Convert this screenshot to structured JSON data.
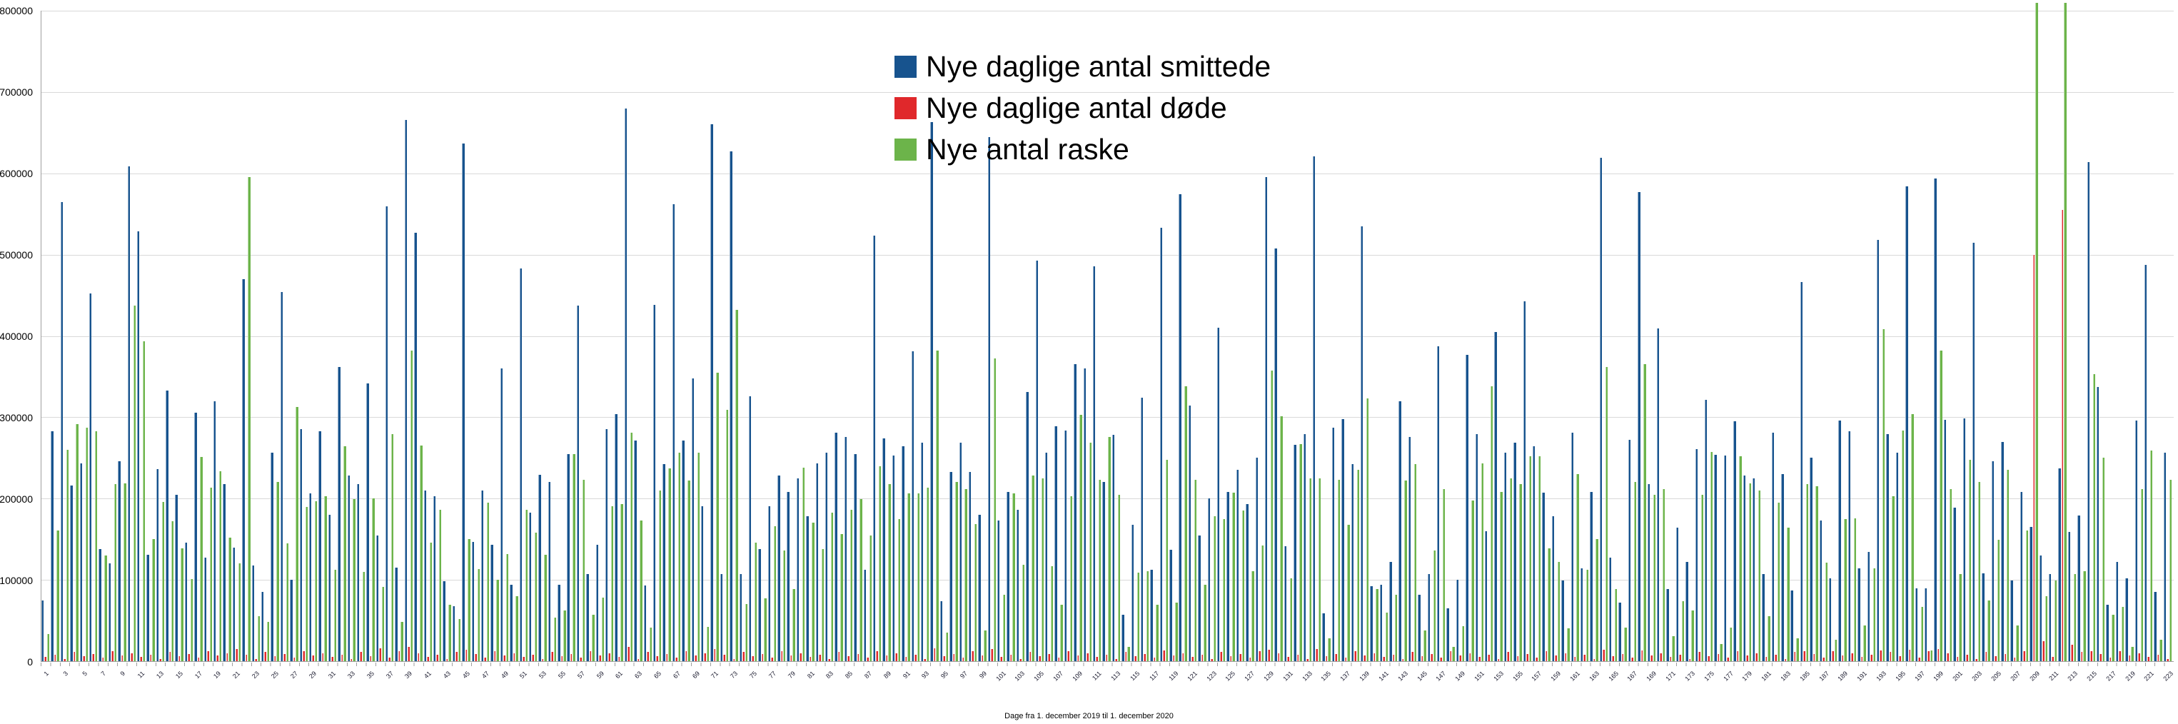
{
  "legend": {
    "items": [
      {
        "label": "Nye daglige antal smittede",
        "color": "#17538E"
      },
      {
        "label": "Nye daglige antal døde",
        "color": "#E0282B"
      },
      {
        "label": "Nye antal raske",
        "color": "#6CB44A"
      }
    ]
  },
  "axes": {
    "x_axis_title": "Dage fra 1. december 2019 til 1. december 2020",
    "y_ticks": [
      "0",
      "100000",
      "200000",
      "300000",
      "400000",
      "500000",
      "600000",
      "700000",
      "800000"
    ],
    "x_first": 1,
    "x_last": 223,
    "x_label_step": 2
  },
  "chart_data": {
    "type": "bar",
    "title": "",
    "xlabel": "Dage fra 1. december 2019 til 1. december 2020",
    "ylabel": "",
    "ylim": [
      0,
      800000
    ],
    "ytick_interval": 100000,
    "grid": true,
    "legend_position": "top-center",
    "days": 223,
    "x_tick_labels": "odd numbers 1 to 223, rotated 45 degrees",
    "series": [
      {
        "name": "Nye daglige antal smittede",
        "color": "#17538E",
        "values": [
          75000,
          283000,
          565000,
          216000,
          243000,
          452000,
          138000,
          120000,
          246000,
          609000,
          529000,
          131000,
          236000,
          333000,
          205000,
          146000,
          306000,
          127000,
          320000,
          218000,
          140000,
          470000,
          118000,
          85000,
          256000,
          454000,
          100000,
          285000,
          206000,
          283000,
          180000,
          362000,
          228000,
          218000,
          342000,
          155000,
          559000,
          115000,
          666000,
          527000,
          210000,
          203000,
          98000,
          68000,
          637000,
          147000,
          210000,
          143000,
          360000,
          94000,
          483000,
          183000,
          229000,
          220000,
          94000,
          255000,
          437000,
          107000,
          143000,
          285000,
          304000,
          680000,
          271000,
          93000,
          438000,
          242000,
          562000,
          271000,
          348000,
          191000,
          660000,
          107000,
          627000,
          107000,
          326000,
          138000,
          191000,
          228000,
          208000,
          225000,
          178000,
          243000,
          256000,
          281000,
          276000,
          255000,
          112000,
          523000,
          274000,
          253000,
          264000,
          381000,
          269000,
          663000,
          74000,
          233000,
          269000,
          233000,
          180000,
          645000,
          173000,
          208000,
          186000,
          331000,
          493000,
          256000,
          289000,
          284000,
          365000,
          360000,
          486000,
          220000,
          278000,
          57000,
          168000,
          324000,
          112000,
          533000,
          137000,
          574000,
          314000,
          155000,
          200000,
          410000,
          208000,
          235000,
          193000,
          250000,
          595000,
          508000,
          141000,
          266000,
          279000,
          621000,
          59000,
          287000,
          298000,
          242000,
          535000,
          92000,
          94000,
          122000,
          320000,
          276000,
          82000,
          107000,
          387000,
          65000,
          100000,
          377000,
          279000,
          160000,
          405000,
          256000,
          269000,
          443000,
          264000,
          207000,
          178000,
          99000,
          281000,
          114000,
          208000,
          619000,
          127000,
          72000,
          272000,
          577000,
          218000,
          409000,
          89000,
          164000,
          122000,
          261000,
          321000,
          254000,
          253000,
          295000,
          228000,
          225000,
          107000,
          281000,
          230000,
          87000,
          466000,
          250000,
          173000,
          102000,
          296000,
          283000,
          114000,
          134000,
          518000,
          279000,
          256000,
          584000,
          90000,
          90000,
          594000,
          297000,
          189000,
          299000,
          515000,
          108000,
          246000,
          270000,
          99000,
          208000,
          165000,
          130000,
          107000,
          237000,
          159000,
          179000,
          614000,
          337000,
          69000,
          122000,
          102000,
          296000,
          487000,
          85000,
          256000
        ]
      },
      {
        "name": "Nye daglige antal døde",
        "color": "#E0282B",
        "values": [
          5000,
          8000,
          3000,
          11000,
          6000,
          9000,
          4000,
          12000,
          7000,
          10000,
          5000,
          8000,
          3000,
          11000,
          6000,
          9000,
          4000,
          12000,
          7000,
          10000,
          15000,
          8000,
          3000,
          11000,
          6000,
          9000,
          4000,
          12000,
          7000,
          10000,
          5000,
          8000,
          3000,
          11000,
          6000,
          16000,
          4000,
          12000,
          18000,
          10000,
          5000,
          8000,
          3000,
          11000,
          14000,
          9000,
          4000,
          12000,
          7000,
          10000,
          5000,
          8000,
          3000,
          11000,
          6000,
          9000,
          4000,
          12000,
          7000,
          10000,
          5000,
          18000,
          3000,
          11000,
          6000,
          9000,
          4000,
          12000,
          7000,
          10000,
          15000,
          8000,
          3000,
          11000,
          6000,
          9000,
          4000,
          12000,
          7000,
          10000,
          5000,
          8000,
          3000,
          11000,
          6000,
          9000,
          4000,
          12000,
          7000,
          10000,
          5000,
          8000,
          3000,
          16000,
          6000,
          9000,
          4000,
          12000,
          7000,
          15000,
          5000,
          8000,
          3000,
          11000,
          6000,
          9000,
          4000,
          12000,
          7000,
          10000,
          5000,
          8000,
          3000,
          11000,
          6000,
          9000,
          4000,
          13000,
          7000,
          10000,
          5000,
          8000,
          3000,
          11000,
          6000,
          9000,
          4000,
          12000,
          14000,
          10000,
          5000,
          8000,
          3000,
          15000,
          6000,
          9000,
          4000,
          12000,
          7000,
          10000,
          5000,
          8000,
          3000,
          11000,
          6000,
          9000,
          4000,
          12000,
          7000,
          10000,
          5000,
          8000,
          3000,
          11000,
          6000,
          9000,
          4000,
          12000,
          7000,
          10000,
          5000,
          8000,
          3000,
          14000,
          6000,
          9000,
          4000,
          13000,
          7000,
          10000,
          5000,
          8000,
          3000,
          11000,
          6000,
          9000,
          4000,
          12000,
          7000,
          10000,
          5000,
          8000,
          3000,
          11000,
          12000,
          9000,
          4000,
          12000,
          7000,
          10000,
          5000,
          8000,
          13000,
          11000,
          6000,
          14000,
          4000,
          12000,
          15000,
          10000,
          5000,
          8000,
          3000,
          11000,
          6000,
          9000,
          4000,
          12000,
          500000,
          25000,
          5000,
          555000,
          20000,
          11000,
          12000,
          9000,
          4000,
          12000,
          7000,
          10000,
          5000,
          8000,
          3000
        ]
      },
      {
        "name": "Nye antal raske",
        "color": "#6CB44A",
        "values": [
          33000,
          161000,
          260000,
          292000,
          287000,
          283000,
          130000,
          218000,
          219000,
          437000,
          393000,
          150000,
          196000,
          172000,
          139000,
          101000,
          251000,
          213000,
          234000,
          152000,
          120000,
          595000,
          55000,
          48000,
          220000,
          145000,
          313000,
          190000,
          197000,
          203000,
          112000,
          264000,
          199000,
          110000,
          200000,
          91000,
          279000,
          48000,
          382000,
          265000,
          146000,
          186000,
          69000,
          52000,
          150000,
          113000,
          195000,
          100000,
          132000,
          80000,
          186000,
          158000,
          131000,
          54000,
          62000,
          255000,
          223000,
          57000,
          78000,
          191000,
          193000,
          281000,
          173000,
          41000,
          210000,
          237000,
          256000,
          222000,
          256000,
          42000,
          355000,
          309000,
          432000,
          70000,
          146000,
          77000,
          166000,
          136000,
          89000,
          238000,
          170000,
          138000,
          183000,
          156000,
          186000,
          199000,
          155000,
          240000,
          218000,
          175000,
          206000,
          206000,
          213000,
          382000,
          35000,
          220000,
          212000,
          169000,
          38000,
          372000,
          82000,
          206000,
          119000,
          228000,
          225000,
          117000,
          69000,
          203000,
          303000,
          269000,
          223000,
          276000,
          205000,
          18000,
          109000,
          111000,
          69000,
          248000,
          72000,
          338000,
          223000,
          94000,
          178000,
          175000,
          207000,
          185000,
          111000,
          142000,
          357000,
          301000,
          102000,
          267000,
          225000,
          225000,
          28000,
          223000,
          168000,
          235000,
          323000,
          89000,
          60000,
          82000,
          222000,
          242000,
          38000,
          136000,
          212000,
          18000,
          43000,
          198000,
          243000,
          338000,
          208000,
          225000,
          218000,
          252000,
          252000,
          139000,
          122000,
          40000,
          230000,
          112000,
          150000,
          362000,
          89000,
          41000,
          220000,
          365000,
          205000,
          212000,
          31000,
          74000,
          62000,
          205000,
          257000,
          21000,
          41000,
          252000,
          219000,
          210000,
          55000,
          195000,
          164000,
          28000,
          218000,
          215000,
          121000,
          26000,
          175000,
          176000,
          44000,
          114000,
          408000,
          203000,
          284000,
          304000,
          67000,
          13000,
          382000,
          212000,
          107000,
          248000,
          220000,
          75000,
          149000,
          235000,
          44000,
          161000,
          810000,
          80000,
          99000,
          810000,
          107000,
          111000,
          353000,
          250000,
          57000,
          67000,
          18000,
          212000,
          259000,
          26000,
          223000
        ]
      }
    ]
  }
}
